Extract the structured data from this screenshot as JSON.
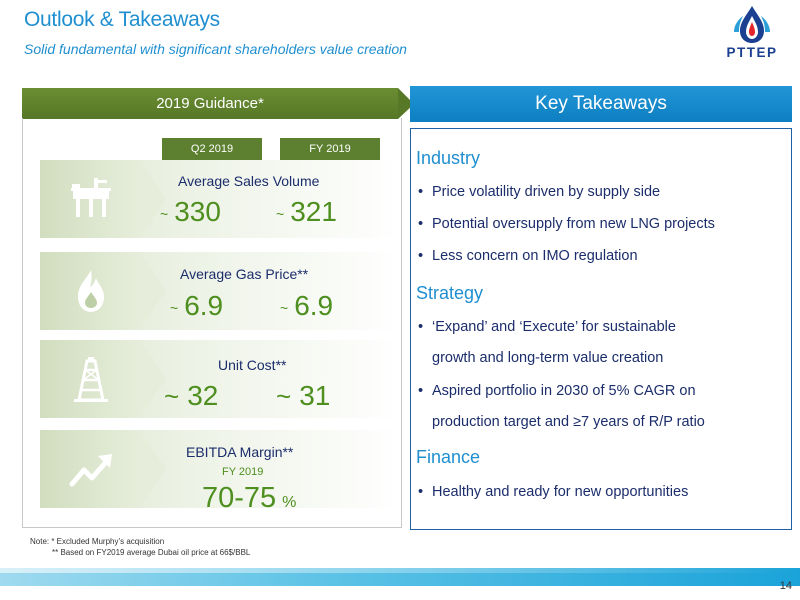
{
  "header": {
    "title": "Outlook & Takeaways",
    "subtitle": "Solid fundamental with significant shareholders value creation",
    "logo_text": "PTTEP"
  },
  "guidance": {
    "header": "2019 Guidance*",
    "col_q2": "Q2 2019",
    "col_fy": "FY 2019",
    "metrics": [
      {
        "label": "Average Sales Volume",
        "q2_prefix": "~",
        "q2": "330",
        "fy_prefix": "~",
        "fy": "321",
        "icon": "oil-platform-icon"
      },
      {
        "label": "Average Gas Price**",
        "q2_prefix": "~",
        "q2": "6.9",
        "fy_prefix": "~",
        "fy": "6.9",
        "icon": "flame-icon"
      },
      {
        "label": "Unit Cost**",
        "q2_prefix": "~",
        "q2": "32",
        "fy_prefix": "~",
        "fy": "31",
        "icon": "drilling-rig-icon"
      },
      {
        "label": "EBITDA Margin**",
        "period": "FY 2019",
        "value": "70-75",
        "unit": "%",
        "icon": "trend-up-icon"
      }
    ]
  },
  "takeaways": {
    "header": "Key Takeaways",
    "sections": [
      {
        "title": "Industry",
        "bullets": [
          "Price volatility driven by supply side",
          "Potential oversupply from new LNG projects",
          "Less concern on IMO regulation"
        ]
      },
      {
        "title": "Strategy",
        "bullets": [
          {
            "line1": "‘Expand’ and ‘Execute’ for sustainable",
            "line2": "growth and long-term value creation"
          },
          {
            "line1": "Aspired portfolio in 2030 of 5% CAGR on",
            "line2": "production target and ≥7 years of R/P ratio"
          }
        ]
      },
      {
        "title": "Finance",
        "bullets": [
          "Healthy and ready for new opportunities"
        ]
      }
    ]
  },
  "notes": {
    "line1": "Note: *   Excluded Murphy’s acquisition",
    "line2": "** Based on FY2019 average Dubai oil price at 66$/BBL"
  },
  "page_number": "14",
  "colors": {
    "accent_blue": "#1f8fd0",
    "navy_text": "#1b2d6b",
    "green_value": "#4e8f1f",
    "green_header": "#5d8030"
  }
}
